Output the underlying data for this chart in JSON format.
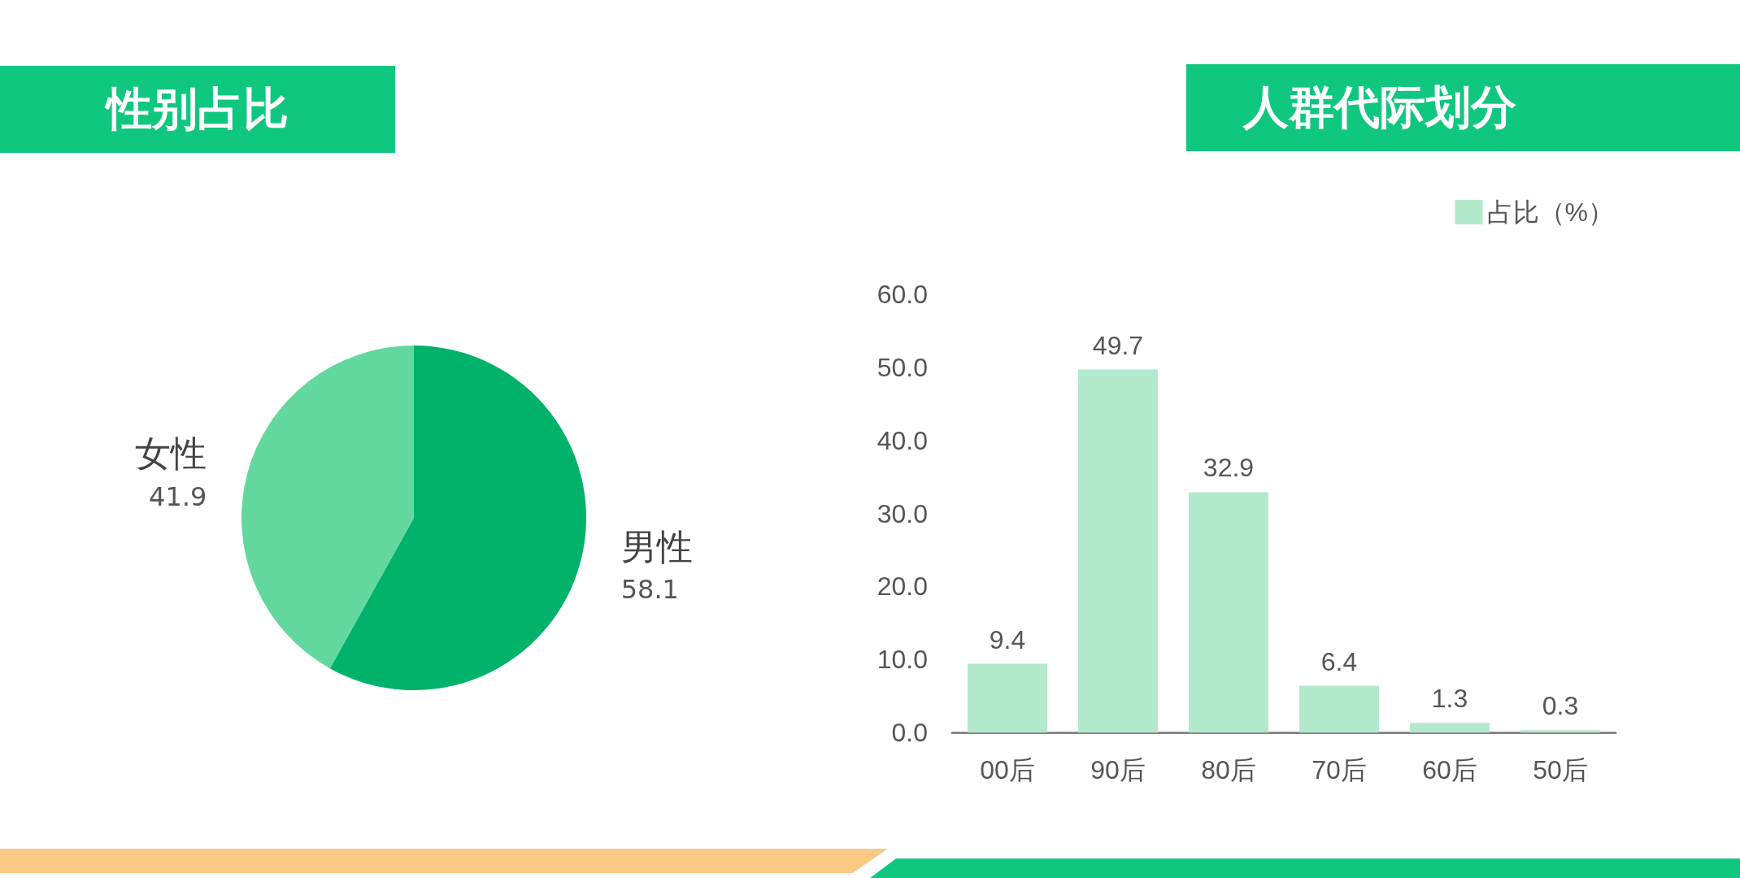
{
  "chart_data": [
    {
      "type": "pie",
      "title": "性别占比",
      "categories": [
        "男性",
        "女性"
      ],
      "values": [
        58.1,
        41.9
      ],
      "colors": [
        "#00b26a",
        "#62d89e"
      ],
      "data_labels": true,
      "legend": false
    },
    {
      "type": "bar",
      "title": "人群代际划分",
      "categories": [
        "00后",
        "90后",
        "80后",
        "70后",
        "60后",
        "50后"
      ],
      "series": [
        {
          "name": "占比（%）",
          "color": "#b3e9cd",
          "values": [
            9.4,
            49.7,
            32.9,
            6.4,
            1.3,
            0.3
          ]
        }
      ],
      "ylim": [
        0,
        60
      ],
      "yticks": [
        {
          "value": 0,
          "label": "0.0"
        },
        {
          "value": 10,
          "label": "10.0"
        },
        {
          "value": 20,
          "label": "20.0"
        },
        {
          "value": 30,
          "label": "30.0"
        },
        {
          "value": 40,
          "label": "40.0"
        },
        {
          "value": 50,
          "label": "50.0"
        },
        {
          "value": 60,
          "label": "60.0"
        }
      ],
      "grid": false,
      "legend": "top right",
      "data_labels": true
    }
  ]
}
